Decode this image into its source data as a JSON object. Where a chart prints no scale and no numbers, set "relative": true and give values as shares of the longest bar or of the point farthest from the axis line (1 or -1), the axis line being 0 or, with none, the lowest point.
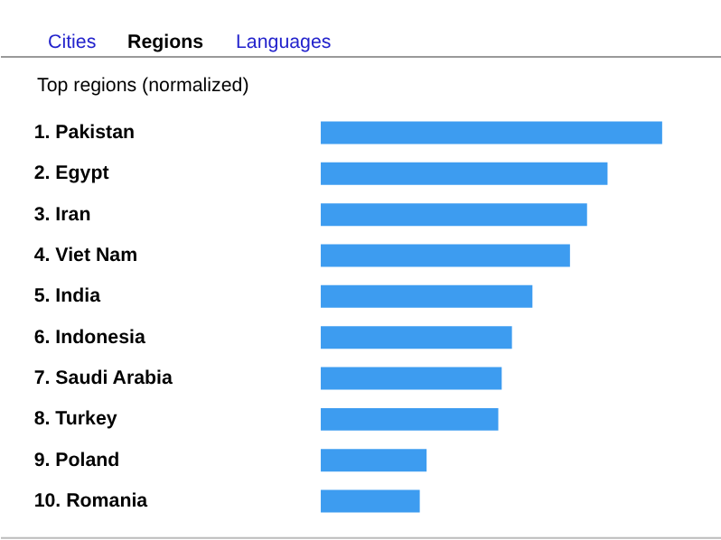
{
  "chart_data": {
    "type": "bar",
    "orientation": "horizontal",
    "relative": true,
    "title": "Top regions (normalized)",
    "annotations": [
      "Cities",
      "Regions",
      "Languages"
    ],
    "categories": [
      "1.  Pakistan",
      "2.  Egypt",
      "3.  Iran",
      "4.  Viet Nam",
      "5.  India",
      "6.  Indonesia",
      "7.  Saudi Arabia",
      "8.  Turkey",
      "9.  Poland",
      "10.  Romania"
    ],
    "values": [
      1,
      0.84,
      0.78,
      0.73,
      0.62,
      0.56,
      0.53,
      0.52,
      0.31,
      0.29
    ],
    "color": "#3d9cf0"
  }
}
